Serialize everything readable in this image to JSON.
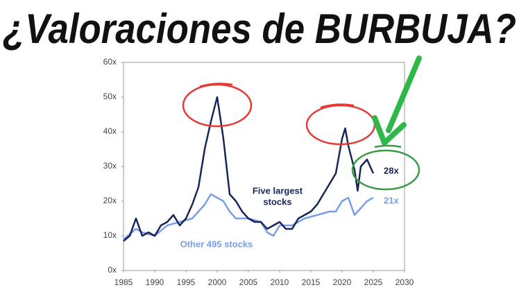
{
  "chart_data": {
    "type": "line",
    "title": "¿Valoraciones de BURBUJA?",
    "xlim": [
      1985,
      2030
    ],
    "xticks": [
      1985,
      1990,
      1995,
      2000,
      2005,
      2010,
      2015,
      2020,
      2025,
      2030
    ],
    "ylim": [
      0,
      60
    ],
    "yticks": [
      {
        "value": 0,
        "label": "0x"
      },
      {
        "value": 10,
        "label": "10x"
      },
      {
        "value": 20,
        "label": "20x"
      },
      {
        "value": 30,
        "label": "30x"
      },
      {
        "value": 40,
        "label": "40x"
      },
      {
        "value": 50,
        "label": "50x"
      },
      {
        "value": 60,
        "label": "60x"
      }
    ],
    "series": [
      {
        "name": "Five largest stocks",
        "color": "#16255a",
        "x": [
          1985,
          1986,
          1987,
          1988,
          1989,
          1990,
          1991,
          1992,
          1993,
          1994,
          1995,
          1996,
          1997,
          1998,
          1999,
          2000,
          2000.5,
          2001,
          2002,
          2003,
          2004,
          2005,
          2006,
          2007,
          2008,
          2009,
          2010,
          2011,
          2012,
          2013,
          2014,
          2015,
          2016,
          2017,
          2018,
          2019,
          2020,
          2020.5,
          2021,
          2022,
          2022.5,
          2023,
          2024,
          2025
        ],
        "values": [
          8.5,
          10,
          15,
          10,
          11,
          10,
          13,
          14,
          16,
          13,
          15,
          19,
          24,
          35,
          43,
          50,
          44,
          38,
          22,
          20,
          17,
          15,
          14,
          14,
          12,
          13,
          14,
          12,
          12,
          15,
          16,
          17,
          19,
          22,
          25,
          28,
          38,
          41,
          36,
          29,
          23,
          30,
          32,
          28
        ]
      },
      {
        "name": "Other 495 stocks",
        "color": "#7b9ee3",
        "x": [
          1985,
          1987,
          1988,
          1990,
          1992,
          1994,
          1996,
          1998,
          1999,
          2000,
          2001,
          2002,
          2003,
          2005,
          2007,
          2008,
          2009,
          2010,
          2012,
          2014,
          2016,
          2018,
          2019,
          2020,
          2021,
          2022,
          2023,
          2024,
          2025
        ],
        "values": [
          9,
          12,
          11,
          10,
          13,
          14,
          15,
          19,
          22,
          21,
          20,
          17,
          15,
          15,
          14,
          11,
          10,
          13,
          13,
          15,
          16,
          17,
          17,
          20,
          21,
          16,
          18,
          20,
          21
        ]
      }
    ],
    "annotations": {
      "five_largest": [
        "Five largest",
        "stocks"
      ],
      "other": "Other 495 stocks",
      "five_largest_last": "28x",
      "other_last": "21x"
    }
  }
}
